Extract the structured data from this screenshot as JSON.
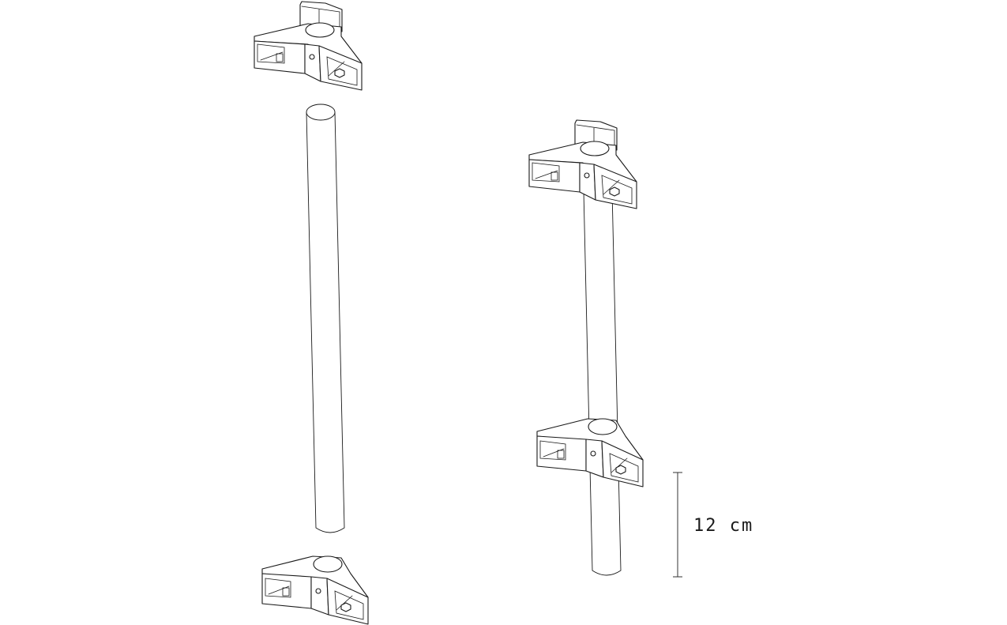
{
  "diagram": {
    "dimension_label": "12 cm",
    "line_color": "#1a1a1a",
    "background": "#ffffff"
  }
}
